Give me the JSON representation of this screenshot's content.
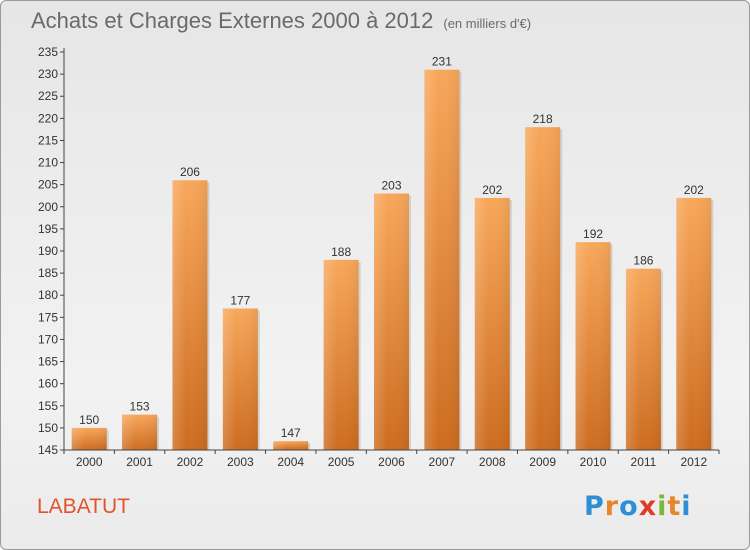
{
  "header": {
    "title": "Achats et Charges Externes 2000 à 2012",
    "subtitle": "(en milliers d'€)"
  },
  "footer": {
    "commune": "LABATUT",
    "logo": {
      "text": "Proxiti",
      "letters": [
        {
          "char": "P",
          "color": "#2e8fd6"
        },
        {
          "char": "r",
          "color": "#e8862a"
        },
        {
          "char": "o",
          "color": "#2e8fd6"
        },
        {
          "char": "x",
          "color": "#e23a2a"
        },
        {
          "char": "i",
          "color": "#7ab83a"
        },
        {
          "char": "t",
          "color": "#e8862a"
        },
        {
          "char": "i",
          "color": "#2e8fd6"
        }
      ]
    }
  },
  "chart_data": {
    "type": "bar",
    "title": "Achats et Charges Externes 2000 à 2012",
    "subtitle": "(en milliers d'€)",
    "categories": [
      "2000",
      "2001",
      "2002",
      "2003",
      "2004",
      "2005",
      "2006",
      "2007",
      "2008",
      "2009",
      "2010",
      "2011",
      "2012"
    ],
    "values": [
      150,
      153,
      206,
      177,
      147,
      188,
      203,
      231,
      202,
      218,
      192,
      186,
      202
    ],
    "ylim": [
      145,
      235
    ],
    "yticks": [
      145,
      150,
      155,
      160,
      165,
      170,
      175,
      180,
      185,
      190,
      195,
      200,
      205,
      210,
      215,
      220,
      225,
      230,
      235
    ],
    "grid": false,
    "legend": "none",
    "colors": {
      "bar_top": "#f8a75a",
      "bar_bottom": "#cd6c20",
      "label": "#333333",
      "axis": "#444444"
    }
  }
}
